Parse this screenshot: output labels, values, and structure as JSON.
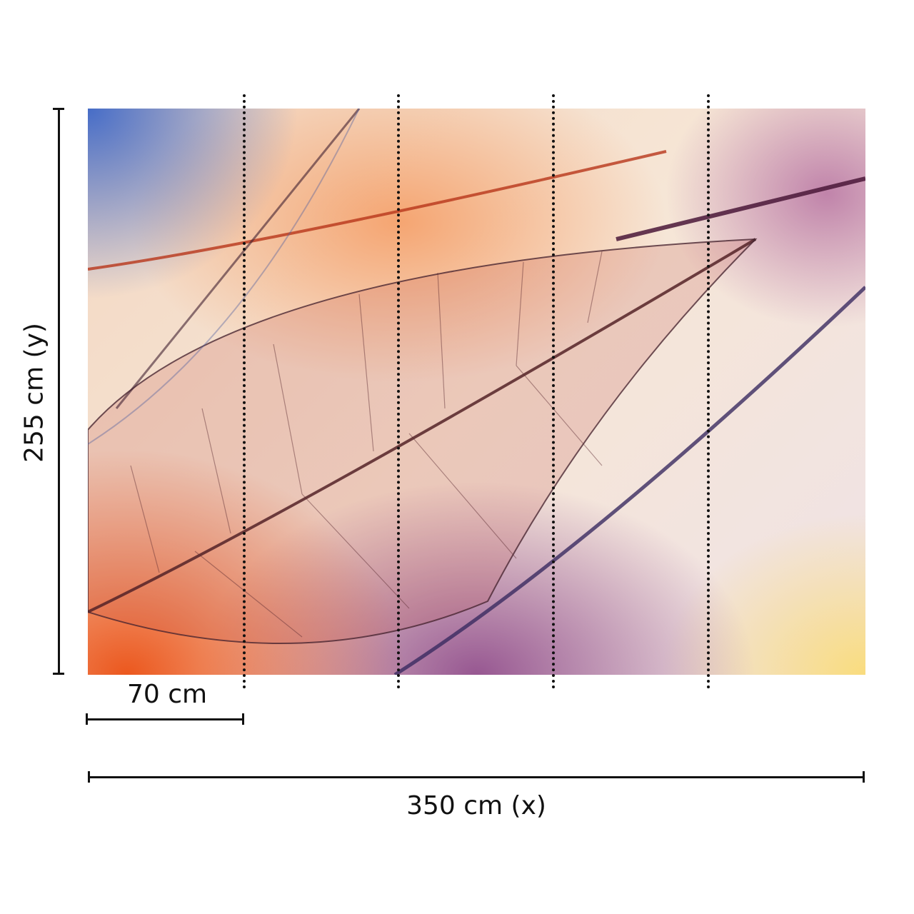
{
  "dimensions": {
    "height_label": "255 cm (y)",
    "width_label": "350 cm (x)",
    "panel_width_label": "70 cm"
  },
  "panels": 5,
  "image": {
    "subject": "leaf-skeleton-mural"
  },
  "colors": {
    "line": "#111111",
    "accent_orange": "#eb5014",
    "accent_purple": "#782878",
    "accent_blue": "#285ac8"
  }
}
